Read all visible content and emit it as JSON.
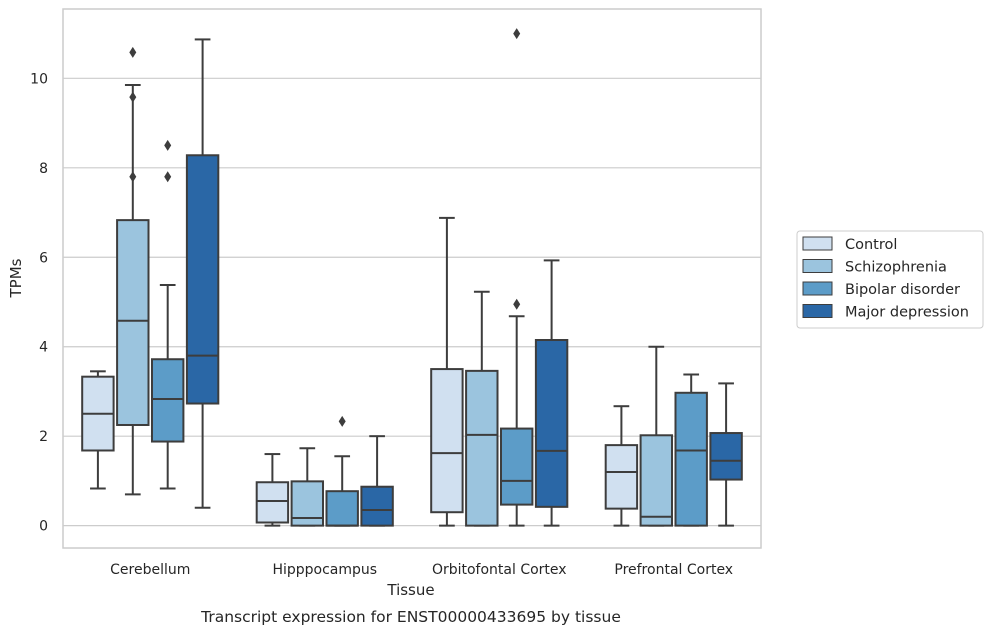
{
  "chart_data": {
    "type": "box",
    "caption": "Transcript expression for ENST00000433695 by tissue",
    "xlabel": "Tissue",
    "ylabel": "TPMs",
    "ylim": [
      -0.5,
      11.55
    ],
    "yticks": [
      0,
      2,
      4,
      6,
      8,
      10
    ],
    "grid": "horizontal",
    "legend_position": "right",
    "categories": [
      "Cerebellum",
      "Hipppocampus",
      "Orbitofontal Cortex",
      "Prefrontal Cortex"
    ],
    "series": [
      {
        "name": "Control",
        "color": "#d0e0f0",
        "boxes": [
          {
            "whislo": 0.83,
            "q1": 1.68,
            "med": 2.5,
            "q3": 3.33,
            "whishi": 3.45,
            "fliers": []
          },
          {
            "whislo": 0.0,
            "q1": 0.07,
            "med": 0.55,
            "q3": 0.97,
            "whishi": 1.6,
            "fliers": []
          },
          {
            "whislo": 0.0,
            "q1": 0.3,
            "med": 1.62,
            "q3": 3.5,
            "whishi": 6.88,
            "fliers": []
          },
          {
            "whislo": 0.0,
            "q1": 0.38,
            "med": 1.2,
            "q3": 1.8,
            "whishi": 2.67,
            "fliers": []
          }
        ]
      },
      {
        "name": "Schizophrenia",
        "color": "#9bc4de",
        "boxes": [
          {
            "whislo": 0.7,
            "q1": 2.25,
            "med": 4.58,
            "q3": 6.83,
            "whishi": 9.85,
            "fliers": [
              7.8,
              9.58,
              10.58
            ]
          },
          {
            "whislo": 0.0,
            "q1": 0.0,
            "med": 0.17,
            "q3": 0.99,
            "whishi": 1.73,
            "fliers": []
          },
          {
            "whislo": 0.0,
            "q1": 0.0,
            "med": 2.03,
            "q3": 3.46,
            "whishi": 5.23,
            "fliers": []
          },
          {
            "whislo": 0.0,
            "q1": 0.0,
            "med": 0.2,
            "q3": 2.02,
            "whishi": 4.0,
            "fliers": []
          }
        ]
      },
      {
        "name": "Bipolar disorder",
        "color": "#5c9cc8",
        "boxes": [
          {
            "whislo": 0.83,
            "q1": 1.88,
            "med": 2.83,
            "q3": 3.72,
            "whishi": 5.38,
            "fliers": [
              7.8,
              8.5
            ]
          },
          {
            "whislo": 0.0,
            "q1": 0.0,
            "med": 0.0,
            "q3": 0.77,
            "whishi": 1.55,
            "fliers": [
              2.33
            ]
          },
          {
            "whislo": 0.0,
            "q1": 0.47,
            "med": 1.0,
            "q3": 2.17,
            "whishi": 4.68,
            "fliers": [
              4.95,
              11.0
            ]
          },
          {
            "whislo": 0.0,
            "q1": 0.0,
            "med": 1.68,
            "q3": 2.97,
            "whishi": 3.38,
            "fliers": []
          }
        ]
      },
      {
        "name": "Major depression",
        "color": "#2a67a6",
        "boxes": [
          {
            "whislo": 0.4,
            "q1": 2.73,
            "med": 3.8,
            "q3": 8.28,
            "whishi": 10.87,
            "fliers": []
          },
          {
            "whislo": 0.0,
            "q1": 0.0,
            "med": 0.35,
            "q3": 0.87,
            "whishi": 2.0,
            "fliers": []
          },
          {
            "whislo": 0.0,
            "q1": 0.42,
            "med": 1.67,
            "q3": 4.15,
            "whishi": 5.93,
            "fliers": []
          },
          {
            "whislo": 0.0,
            "q1": 1.03,
            "med": 1.45,
            "q3": 2.07,
            "whishi": 3.18,
            "fliers": []
          }
        ]
      }
    ]
  }
}
